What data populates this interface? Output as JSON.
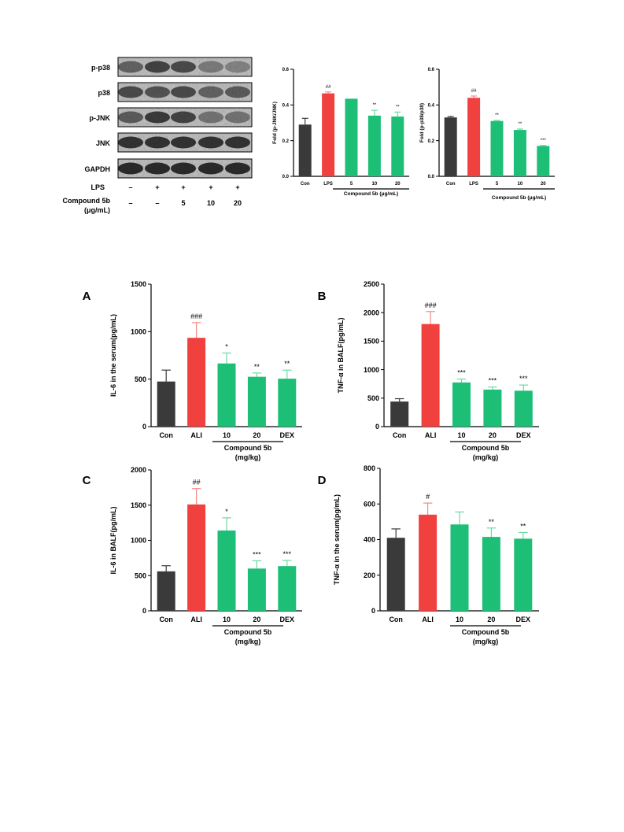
{
  "western_blot": {
    "rows": [
      "p-p38",
      "p38",
      "p-JNK",
      "JNK",
      "GAPDH"
    ],
    "lps_label": "LPS",
    "lps_values": [
      "–",
      "+",
      "+",
      "+",
      "+"
    ],
    "compound_label_line1": "Compound 5b",
    "compound_label_line2": "(μg/mL)",
    "compound_values": [
      "–",
      "–",
      "5",
      "10",
      "20"
    ]
  },
  "colors": {
    "con": "#3a3a3a",
    "ali": "#f0413f",
    "treat": "#1dbf76",
    "treat_error": "#6fd9a4",
    "ali_error": "#f58a88"
  },
  "chart_data": [
    {
      "id": "fold-pjnk",
      "type": "bar",
      "ylabel": "Fold (p-JNK/JNK)",
      "categories": [
        "Con",
        "LPS",
        "5",
        "10",
        "20"
      ],
      "values": [
        0.29,
        0.465,
        0.435,
        0.34,
        0.335
      ],
      "errors": [
        0.035,
        0.008,
        0.0,
        0.03,
        0.025
      ],
      "annotations": [
        "",
        "##",
        "",
        "**",
        "**"
      ],
      "ylim": [
        0,
        0.6
      ],
      "yticks": [
        "0.0",
        "0.2",
        "0.4",
        "0.6"
      ],
      "group_label": "Compound 5b (μg/mL)"
    },
    {
      "id": "fold-pp38",
      "type": "bar",
      "ylabel": "Fold (p-p38/p38)",
      "categories": [
        "Con",
        "LPS",
        "5",
        "10",
        "20"
      ],
      "values": [
        0.33,
        0.44,
        0.31,
        0.26,
        0.17
      ],
      "errors": [
        0.005,
        0.01,
        0.003,
        0.005,
        0.003
      ],
      "annotations": [
        "",
        "##",
        "**",
        "**",
        "***"
      ],
      "ylim": [
        0,
        0.6
      ],
      "yticks": [
        "0.0",
        "0.2",
        "0.4",
        "0.6"
      ],
      "group_label": "Compound 5b (μg/mL)"
    },
    {
      "id": "panel-a",
      "panel": "A",
      "type": "bar",
      "ylabel": "IL-6 in the serum(pg/mL)",
      "categories": [
        "Con",
        "ALI",
        "10",
        "20",
        "DEX"
      ],
      "values": [
        475,
        935,
        665,
        525,
        505
      ],
      "errors": [
        120,
        160,
        110,
        40,
        90
      ],
      "annotations": [
        "",
        "###",
        "*",
        "**",
        "**"
      ],
      "ylim": [
        0,
        1500
      ],
      "yticks": [
        "0",
        "500",
        "1000",
        "1500"
      ],
      "group_label_line1": "Compound 5b",
      "group_label_line2": "(mg/kg)"
    },
    {
      "id": "panel-b",
      "panel": "B",
      "type": "bar",
      "ylabel": "TNF-α in BALF(pg/mL)",
      "categories": [
        "Con",
        "ALI",
        "10",
        "20",
        "DEX"
      ],
      "values": [
        440,
        1800,
        775,
        650,
        630
      ],
      "errors": [
        50,
        220,
        60,
        45,
        100
      ],
      "annotations": [
        "",
        "###",
        "***",
        "***",
        "***"
      ],
      "ylim": [
        0,
        2500
      ],
      "yticks": [
        "0",
        "500",
        "1000",
        "1500",
        "2000",
        "2500"
      ],
      "group_label_line1": "Compound 5b",
      "group_label_line2": "(mg/kg)"
    },
    {
      "id": "panel-c",
      "panel": "C",
      "type": "bar",
      "ylabel": "IL-6 in BALF(pg/mL)",
      "categories": [
        "Con",
        "ALI",
        "10",
        "20",
        "DEX"
      ],
      "values": [
        560,
        1510,
        1140,
        600,
        635
      ],
      "errors": [
        80,
        225,
        180,
        110,
        80
      ],
      "annotations": [
        "",
        "##",
        "*",
        "***",
        "***"
      ],
      "ylim": [
        0,
        2000
      ],
      "yticks": [
        "0",
        "500",
        "1000",
        "1500",
        "2000"
      ],
      "group_label_line1": "Compound 5b",
      "group_label_line2": "(mg/kg)"
    },
    {
      "id": "panel-d",
      "panel": "D",
      "type": "bar",
      "ylabel": "TNF-α in the serum(pg/mL)",
      "categories": [
        "Con",
        "ALI",
        "10",
        "20",
        "DEX"
      ],
      "values": [
        410,
        540,
        485,
        415,
        405
      ],
      "errors": [
        50,
        65,
        70,
        50,
        35
      ],
      "annotations": [
        "",
        "#",
        "",
        "**",
        "**"
      ],
      "ylim": [
        0,
        800
      ],
      "yticks": [
        "0",
        "200",
        "400",
        "600",
        "800"
      ],
      "group_label_line1": "Compound 5b",
      "group_label_line2": "(mg/kg)"
    }
  ]
}
